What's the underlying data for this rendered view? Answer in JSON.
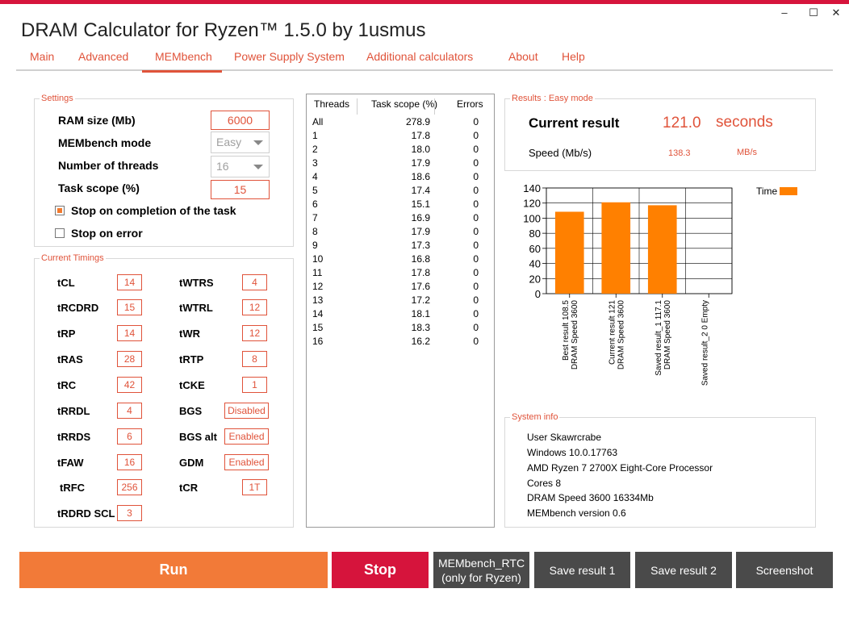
{
  "window": {
    "title": "DRAM Calculator for Ryzen™ 1.5.0 by 1usmus",
    "minimize_glyph": "–",
    "maximize_glyph": "☐",
    "close_glyph": "✕"
  },
  "tabs": [
    {
      "label": "Main"
    },
    {
      "label": "Advanced"
    },
    {
      "label": "MEMbench",
      "active": true
    },
    {
      "label": "Power Supply System"
    },
    {
      "label": "Additional calculators"
    },
    {
      "label": "About"
    },
    {
      "label": "Help"
    }
  ],
  "settings": {
    "group_label": "Settings",
    "ram_size_label": "RAM size (Mb)",
    "ram_size_value": "6000",
    "mode_label": "MEMbench mode",
    "mode_value": "Easy",
    "threads_label": "Number of threads",
    "threads_value": "16",
    "task_scope_label": "Task scope (%)",
    "task_scope_value": "15",
    "stop_completion_label": "Stop on completion of the task",
    "stop_completion_checked": true,
    "stop_error_label": "Stop on error",
    "stop_error_checked": false
  },
  "timings": {
    "group_label": "Current Timings",
    "left": [
      {
        "name": "tCL",
        "value": "14"
      },
      {
        "name": "tRCDRD",
        "value": "15"
      },
      {
        "name": "tRP",
        "value": "14"
      },
      {
        "name": "tRAS",
        "value": "28"
      },
      {
        "name": "tRC",
        "value": "42"
      },
      {
        "name": "tRRDL",
        "value": "4"
      },
      {
        "name": "tRRDS",
        "value": "6"
      },
      {
        "name": "tFAW",
        "value": "16"
      },
      {
        "name": "tRFC",
        "value": "256"
      },
      {
        "name": "tRDRD SCL",
        "value": "3"
      }
    ],
    "right": [
      {
        "name": "tWTRS",
        "value": "4"
      },
      {
        "name": "tWTRL",
        "value": "12"
      },
      {
        "name": "tWR",
        "value": "12"
      },
      {
        "name": "tRTP",
        "value": "8"
      },
      {
        "name": "tCKE",
        "value": "1"
      },
      {
        "name": "BGS",
        "value": "Disabled"
      },
      {
        "name": "BGS alt",
        "value": "Enabled"
      },
      {
        "name": "GDM",
        "value": "Enabled"
      },
      {
        "name": "tCR",
        "value": "1T"
      }
    ]
  },
  "threads_table": {
    "headers": [
      "Threads",
      "Task scope (%)",
      "Errors"
    ],
    "rows": [
      [
        "All",
        "278.9",
        "0"
      ],
      [
        "1",
        "17.8",
        "0"
      ],
      [
        "2",
        "18.0",
        "0"
      ],
      [
        "3",
        "17.9",
        "0"
      ],
      [
        "4",
        "18.6",
        "0"
      ],
      [
        "5",
        "17.4",
        "0"
      ],
      [
        "6",
        "15.1",
        "0"
      ],
      [
        "7",
        "16.9",
        "0"
      ],
      [
        "8",
        "17.9",
        "0"
      ],
      [
        "9",
        "17.3",
        "0"
      ],
      [
        "10",
        "16.8",
        "0"
      ],
      [
        "11",
        "17.8",
        "0"
      ],
      [
        "12",
        "17.6",
        "0"
      ],
      [
        "13",
        "17.2",
        "0"
      ],
      [
        "14",
        "18.1",
        "0"
      ],
      [
        "15",
        "18.3",
        "0"
      ],
      [
        "16",
        "16.2",
        "0"
      ]
    ]
  },
  "results": {
    "group_label": "Results : Easy mode",
    "current_label": "Current result",
    "current_value": "121.0",
    "current_unit": "seconds",
    "speed_label": "Speed (Mb/s)",
    "speed_value": "138.3",
    "speed_unit": "MB/s"
  },
  "chart_data": {
    "type": "bar",
    "title": "",
    "xlabel": "",
    "ylabel": "",
    "ylim": [
      0,
      140
    ],
    "yticks": [
      0,
      20,
      40,
      60,
      80,
      100,
      120,
      140
    ],
    "grid": true,
    "legend_position": "top-right",
    "bar_color": "#ff8000",
    "categories": [
      {
        "line1": "Best result 108.5",
        "line2": "DRAM Speed 3600"
      },
      {
        "line1": "Current result 121",
        "line2": "DRAM Speed 3600"
      },
      {
        "line1": "Saved result_1 117.1",
        "line2": "DRAM Speed 3600"
      },
      {
        "line1": "Saved result_2 0 Empty",
        "line2": ""
      }
    ],
    "series": [
      {
        "name": "Time",
        "values": [
          108.5,
          121,
          117.1,
          0
        ]
      }
    ]
  },
  "system_info": {
    "group_label": "System info",
    "lines": [
      "User Skawrcrabe",
      "Windows 10.0.17763",
      "AMD Ryzen 7 2700X Eight-Core Processor",
      "Cores 8",
      "DRAM Speed 3600   16334Mb",
      "MEMbench version 0.6"
    ]
  },
  "buttons": {
    "run": "Run",
    "stop": "Stop",
    "rtc_line1": "MEMbench_RTC",
    "rtc_line2": "(only for Ryzen)",
    "save1": "Save result 1",
    "save2": "Save result 2",
    "screenshot": "Screenshot"
  },
  "colors": {
    "accent": "#e0533a",
    "run": "#f27a38",
    "stop": "#d6143c",
    "gray_button": "#4a4a4a",
    "title_bar": "#d6143c"
  }
}
